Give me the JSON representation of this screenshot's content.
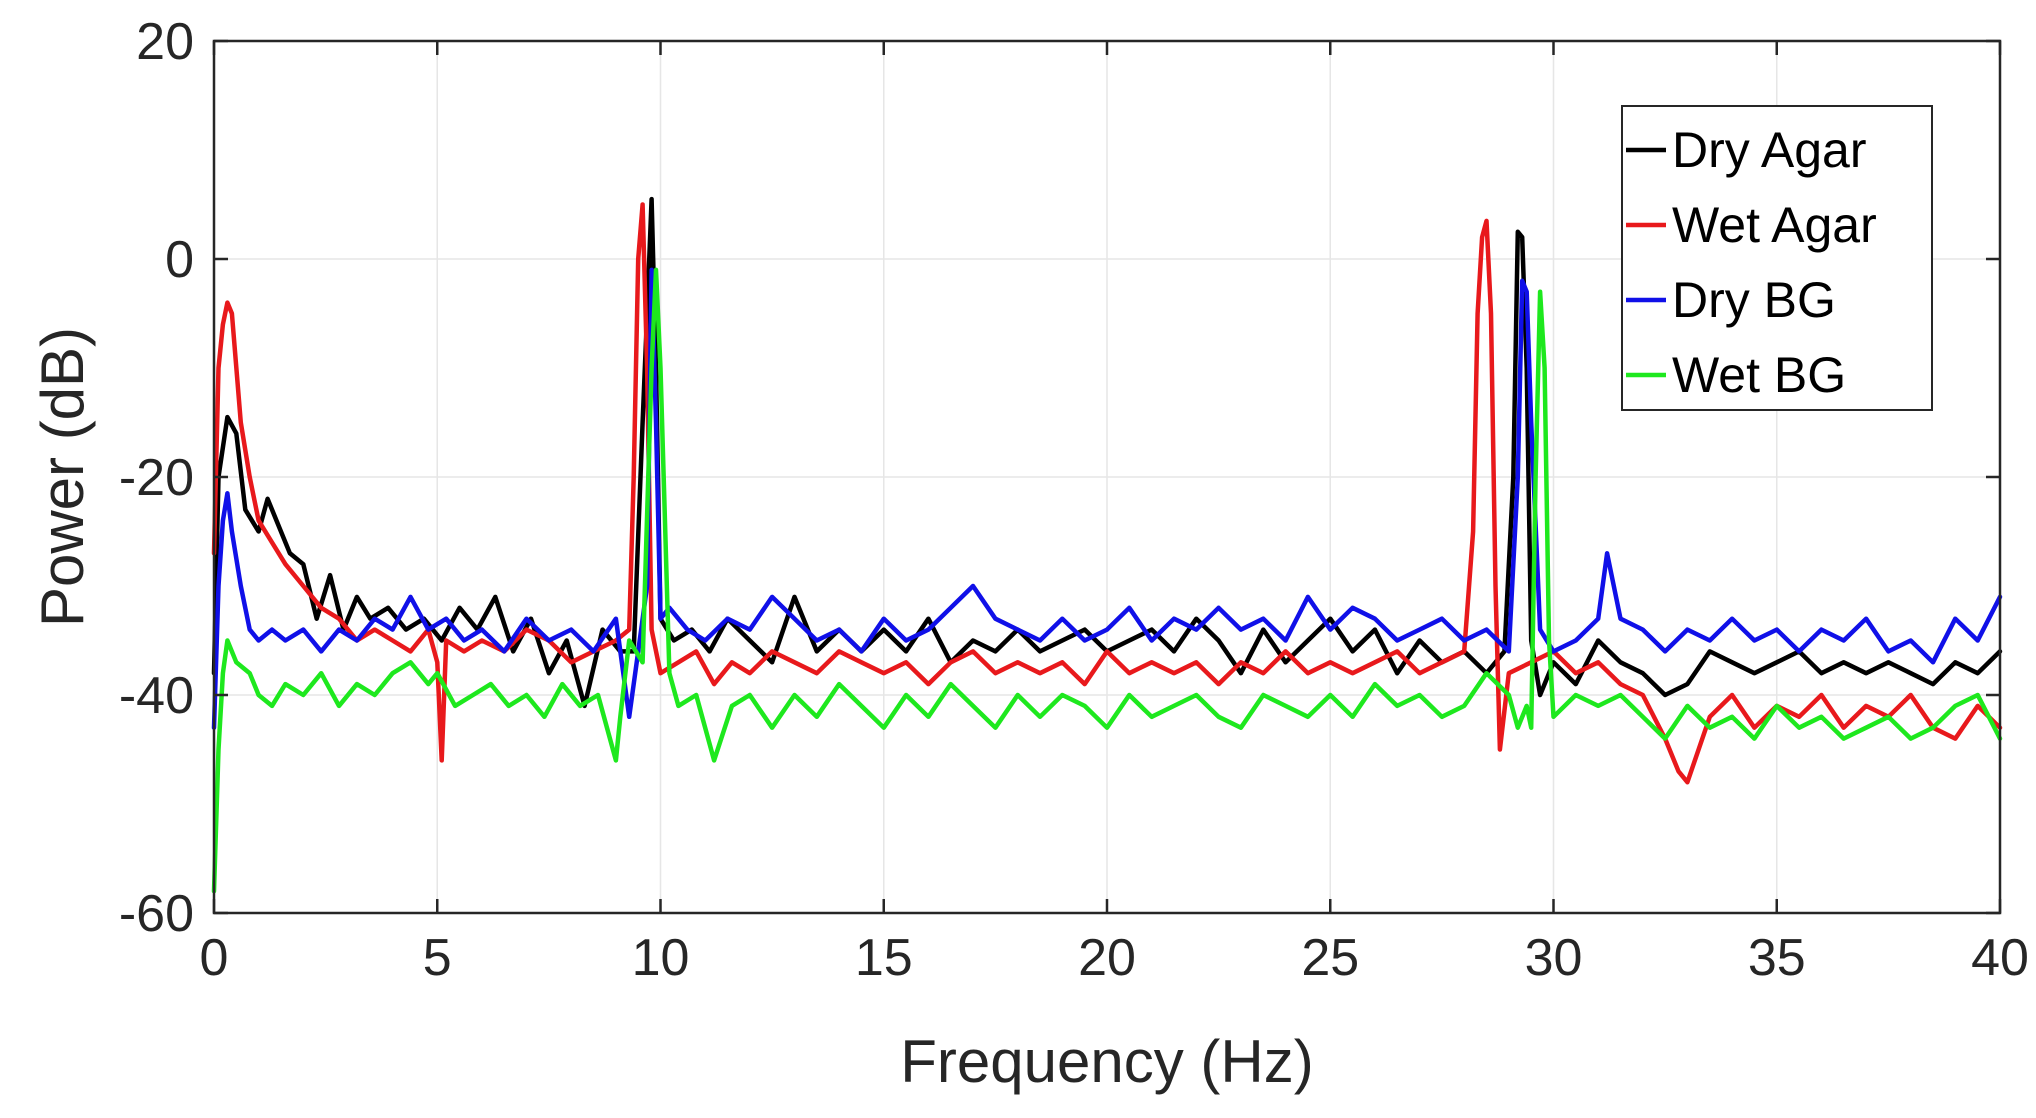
{
  "chart_data": {
    "type": "line",
    "title": "",
    "xlabel": "Frequency (Hz)",
    "ylabel": "Power (dB)",
    "xlim": [
      0,
      40
    ],
    "ylim": [
      -60,
      20
    ],
    "xticks": [
      "0",
      "5",
      "10",
      "15",
      "20",
      "25",
      "30",
      "35",
      "40"
    ],
    "yticks": [
      "20",
      "0",
      "-20",
      "-40",
      "-60"
    ],
    "grid": true,
    "legend_position": "top-right",
    "series": [
      {
        "name": "Dry Agar",
        "color": "#000000",
        "x": [
          0,
          0.1,
          0.3,
          0.5,
          0.7,
          1.0,
          1.2,
          1.4,
          1.7,
          2.0,
          2.3,
          2.6,
          2.9,
          3.2,
          3.5,
          3.9,
          4.3,
          4.7,
          5.1,
          5.5,
          5.9,
          6.3,
          6.7,
          7.1,
          7.5,
          7.9,
          8.3,
          8.7,
          9.1,
          9.4,
          9.6,
          9.7,
          9.8,
          9.9,
          10.0,
          10.3,
          10.7,
          11.1,
          11.5,
          12.0,
          12.5,
          13.0,
          13.5,
          14.0,
          14.5,
          15.0,
          15.5,
          16.0,
          16.5,
          17.0,
          17.5,
          18.0,
          18.5,
          19.0,
          19.5,
          20.0,
          20.5,
          21.0,
          21.5,
          22.0,
          22.5,
          23.0,
          23.5,
          24.0,
          24.5,
          25.0,
          25.5,
          26.0,
          26.5,
          27.0,
          27.5,
          28.0,
          28.5,
          28.9,
          29.1,
          29.2,
          29.3,
          29.4,
          29.5,
          29.7,
          30.0,
          30.5,
          31.0,
          31.5,
          32.0,
          32.5,
          33.0,
          33.5,
          34.0,
          34.5,
          35.0,
          35.5,
          36.0,
          36.5,
          37.0,
          37.5,
          38.0,
          38.5,
          39.0,
          39.5,
          40.0
        ],
        "y": [
          -38,
          -20,
          -14.5,
          -16,
          -23,
          -25,
          -22,
          -24,
          -27,
          -28,
          -33,
          -29,
          -34,
          -31,
          -33,
          -32,
          -34,
          -33,
          -35,
          -32,
          -34,
          -31,
          -36,
          -33,
          -38,
          -35,
          -41,
          -34,
          -36,
          -36,
          -15,
          -5,
          5.5,
          -10,
          -33,
          -35,
          -34,
          -36,
          -33,
          -35,
          -37,
          -31,
          -36,
          -34,
          -36,
          -34,
          -36,
          -33,
          -37,
          -35,
          -36,
          -34,
          -36,
          -35,
          -34,
          -36,
          -35,
          -34,
          -36,
          -33,
          -35,
          -38,
          -34,
          -37,
          -35,
          -33,
          -36,
          -34,
          -38,
          -35,
          -37,
          -36,
          -38,
          -36,
          -20,
          2.5,
          2,
          -10,
          -35,
          -40,
          -37,
          -39,
          -35,
          -37,
          -38,
          -40,
          -39,
          -36,
          -37,
          -38,
          -37,
          -36,
          -38,
          -37,
          -38,
          -37,
          -38,
          -39,
          -37,
          -38,
          -36
        ]
      },
      {
        "name": "Wet Agar",
        "color": "#e8191c",
        "x": [
          0,
          0.1,
          0.2,
          0.3,
          0.4,
          0.6,
          0.8,
          1.0,
          1.3,
          1.6,
          2.0,
          2.4,
          2.8,
          3.2,
          3.6,
          4.0,
          4.4,
          4.8,
          5.0,
          5.1,
          5.2,
          5.6,
          6.0,
          6.5,
          7.0,
          7.5,
          8.0,
          8.5,
          9.0,
          9.3,
          9.4,
          9.5,
          9.6,
          9.7,
          9.8,
          10.0,
          10.4,
          10.8,
          11.2,
          11.6,
          12.0,
          12.5,
          13.0,
          13.5,
          14.0,
          14.5,
          15.0,
          15.5,
          16.0,
          16.5,
          17.0,
          17.5,
          18.0,
          18.5,
          19.0,
          19.5,
          20.0,
          20.5,
          21.0,
          21.5,
          22.0,
          22.5,
          23.0,
          23.5,
          24.0,
          24.5,
          25.0,
          25.5,
          26.0,
          26.5,
          27.0,
          27.5,
          28.0,
          28.2,
          28.3,
          28.4,
          28.5,
          28.6,
          28.7,
          28.8,
          29.0,
          29.5,
          30.0,
          30.5,
          31.0,
          31.5,
          32.0,
          32.5,
          32.8,
          33.0,
          33.5,
          34.0,
          34.5,
          35.0,
          35.5,
          36.0,
          36.5,
          37.0,
          37.5,
          38.0,
          38.5,
          39.0,
          39.5,
          40.0
        ],
        "y": [
          -27,
          -10,
          -6,
          -4,
          -5,
          -15,
          -20,
          -24,
          -26,
          -28,
          -30,
          -32,
          -33,
          -35,
          -34,
          -35,
          -36,
          -34,
          -37,
          -46,
          -35,
          -36,
          -35,
          -36,
          -34,
          -35,
          -37,
          -36,
          -35,
          -34,
          -20,
          0,
          5,
          -10,
          -34,
          -38,
          -37,
          -36,
          -39,
          -37,
          -38,
          -36,
          -37,
          -38,
          -36,
          -37,
          -38,
          -37,
          -39,
          -37,
          -36,
          -38,
          -37,
          -38,
          -37,
          -39,
          -36,
          -38,
          -37,
          -38,
          -37,
          -39,
          -37,
          -38,
          -36,
          -38,
          -37,
          -38,
          -37,
          -36,
          -38,
          -37,
          -36,
          -25,
          -5,
          2,
          3.5,
          -5,
          -30,
          -45,
          -38,
          -37,
          -36,
          -38,
          -37,
          -39,
          -40,
          -44,
          -47,
          -48,
          -42,
          -40,
          -43,
          -41,
          -42,
          -40,
          -43,
          -41,
          -42,
          -40,
          -43,
          -44,
          -41,
          -43
        ]
      },
      {
        "name": "Dry BG",
        "color": "#1010e8",
        "x": [
          0,
          0.1,
          0.2,
          0.3,
          0.4,
          0.6,
          0.8,
          1.0,
          1.3,
          1.6,
          2.0,
          2.4,
          2.8,
          3.2,
          3.6,
          4.0,
          4.4,
          4.8,
          5.2,
          5.6,
          6.0,
          6.5,
          7.0,
          7.5,
          8.0,
          8.5,
          9.0,
          9.3,
          9.5,
          9.7,
          9.8,
          9.9,
          10.0,
          10.2,
          10.6,
          11.0,
          11.5,
          12.0,
          12.5,
          13.0,
          13.5,
          14.0,
          14.5,
          15.0,
          15.5,
          16.0,
          16.5,
          17.0,
          17.5,
          18.0,
          18.5,
          19.0,
          19.5,
          20.0,
          20.5,
          21.0,
          21.5,
          22.0,
          22.5,
          23.0,
          23.5,
          24.0,
          24.5,
          25.0,
          25.5,
          26.0,
          26.5,
          27.0,
          27.5,
          28.0,
          28.5,
          29.0,
          29.2,
          29.3,
          29.4,
          29.5,
          29.7,
          30.0,
          30.5,
          31.0,
          31.2,
          31.5,
          32.0,
          32.5,
          33.0,
          33.5,
          34.0,
          34.5,
          35.0,
          35.5,
          36.0,
          36.5,
          37.0,
          37.5,
          38.0,
          38.5,
          39.0,
          39.5,
          40.0
        ],
        "y": [
          -43,
          -30,
          -24,
          -21.5,
          -25,
          -30,
          -34,
          -35,
          -34,
          -35,
          -34,
          -36,
          -34,
          -35,
          -33,
          -34,
          -31,
          -34,
          -33,
          -35,
          -34,
          -36,
          -33,
          -35,
          -34,
          -36,
          -33,
          -42,
          -36,
          -30,
          -1,
          -15,
          -33,
          -32,
          -34,
          -35,
          -33,
          -34,
          -31,
          -33,
          -35,
          -34,
          -36,
          -33,
          -35,
          -34,
          -32,
          -30,
          -33,
          -34,
          -35,
          -33,
          -35,
          -34,
          -32,
          -35,
          -33,
          -34,
          -32,
          -34,
          -33,
          -35,
          -31,
          -34,
          -32,
          -33,
          -35,
          -34,
          -33,
          -35,
          -34,
          -36,
          -20,
          -2,
          -3,
          -15,
          -34,
          -36,
          -35,
          -33,
          -27,
          -33,
          -34,
          -36,
          -34,
          -35,
          -33,
          -35,
          -34,
          -36,
          -34,
          -35,
          -33,
          -36,
          -35,
          -37,
          -33,
          -35,
          -31
        ]
      },
      {
        "name": "Wet BG",
        "color": "#1ee81e",
        "x": [
          0,
          0.1,
          0.2,
          0.3,
          0.5,
          0.8,
          1.0,
          1.3,
          1.6,
          2.0,
          2.4,
          2.8,
          3.2,
          3.6,
          4.0,
          4.4,
          4.8,
          5.0,
          5.4,
          5.8,
          6.2,
          6.6,
          7.0,
          7.4,
          7.8,
          8.2,
          8.6,
          9.0,
          9.1,
          9.3,
          9.6,
          9.8,
          9.9,
          10.0,
          10.2,
          10.4,
          10.8,
          11.2,
          11.6,
          12.0,
          12.5,
          13.0,
          13.5,
          14.0,
          14.5,
          15.0,
          15.5,
          16.0,
          16.5,
          17.0,
          17.5,
          18.0,
          18.5,
          19.0,
          19.5,
          20.0,
          20.5,
          21.0,
          21.5,
          22.0,
          22.5,
          23.0,
          23.5,
          24.0,
          24.5,
          25.0,
          25.5,
          26.0,
          26.5,
          27.0,
          27.5,
          28.0,
          28.5,
          29.0,
          29.2,
          29.4,
          29.5,
          29.6,
          29.7,
          29.8,
          29.9,
          30.0,
          30.5,
          31.0,
          31.5,
          32.0,
          32.5,
          33.0,
          33.5,
          34.0,
          34.5,
          35.0,
          35.5,
          36.0,
          36.5,
          37.0,
          37.5,
          38.0,
          38.5,
          39.0,
          39.5,
          40.0
        ],
        "y": [
          -58,
          -45,
          -38,
          -35,
          -37,
          -38,
          -40,
          -41,
          -39,
          -40,
          -38,
          -41,
          -39,
          -40,
          -38,
          -37,
          -39,
          -38,
          -41,
          -40,
          -39,
          -41,
          -40,
          -42,
          -39,
          -41,
          -40,
          -46,
          -42,
          -35,
          -37,
          -10,
          -1,
          -10,
          -38,
          -41,
          -40,
          -46,
          -41,
          -40,
          -43,
          -40,
          -42,
          -39,
          -41,
          -43,
          -40,
          -42,
          -39,
          -41,
          -43,
          -40,
          -42,
          -40,
          -41,
          -43,
          -40,
          -42,
          -41,
          -40,
          -42,
          -43,
          -40,
          -41,
          -42,
          -40,
          -42,
          -39,
          -41,
          -40,
          -42,
          -41,
          -38,
          -40,
          -43,
          -41,
          -43,
          -20,
          -3,
          -10,
          -35,
          -42,
          -40,
          -41,
          -40,
          -42,
          -44,
          -41,
          -43,
          -42,
          -44,
          -41,
          -43,
          -42,
          -44,
          -43,
          -42,
          -44,
          -43,
          -41,
          -40,
          -44
        ]
      }
    ]
  }
}
